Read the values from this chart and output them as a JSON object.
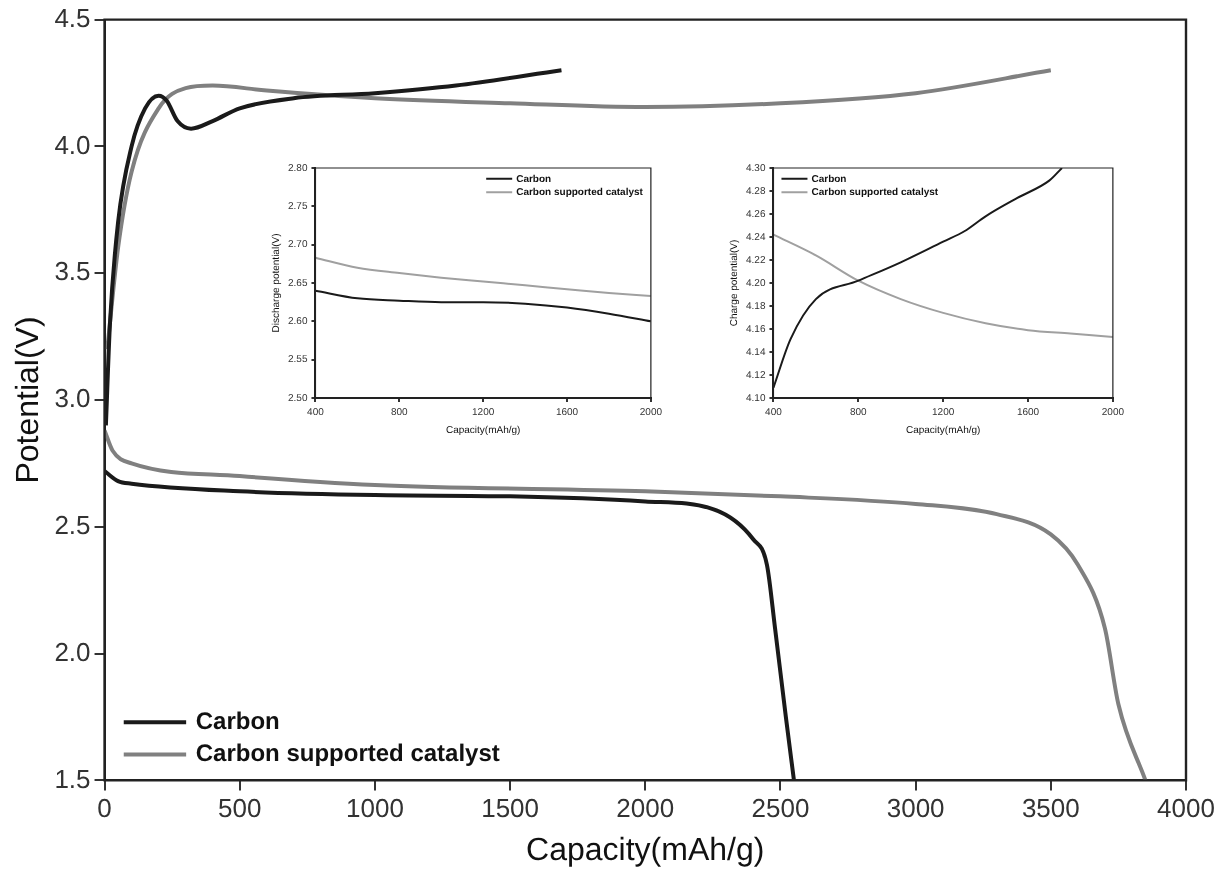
{
  "chart_data": [
    {
      "type": "line",
      "xlabel": "Capacity(mAh/g)",
      "ylabel": "Potential(V)",
      "xlim": [
        0,
        4000
      ],
      "xticks": [
        0,
        500,
        1000,
        1500,
        2000,
        2500,
        3000,
        3500,
        4000
      ],
      "ylim": [
        1.5,
        4.5
      ],
      "yticks": [
        {
          "value": 1.5,
          "label": "1.5"
        },
        {
          "value": 2,
          "label": "2.0"
        },
        {
          "value": 2.5,
          "label": "2.5"
        },
        {
          "value": 3,
          "label": "3.0"
        },
        {
          "value": 3.5,
          "label": "3.5"
        },
        {
          "value": 4,
          "label": "4.0"
        },
        {
          "value": 4.5,
          "label": "4.5"
        }
      ],
      "grid": false,
      "legend": "bottom left",
      "marker": "none",
      "line_style": "solid",
      "series": [
        {
          "name": "Carbon",
          "color": "#1a1a1a",
          "x": [
            0,
            50,
            100,
            500,
            1000,
            1500,
            2000,
            2250,
            2400,
            2450,
            2480,
            2520,
            2550
          ],
          "values": [
            2.72,
            2.68,
            2.67,
            2.64,
            2.625,
            2.62,
            2.6,
            2.57,
            2.45,
            2.35,
            2.1,
            1.75,
            1.5
          ]
        },
        {
          "name": "Carbon supported catalyst",
          "color": "#808080",
          "x": [
            0,
            30,
            100,
            500,
            1000,
            2000,
            2500,
            3000,
            3300,
            3500,
            3600,
            3700,
            3750,
            3850
          ],
          "values": [
            2.88,
            2.8,
            2.75,
            2.7,
            2.665,
            2.64,
            2.62,
            2.59,
            2.55,
            2.47,
            2.35,
            2.1,
            1.8,
            1.5
          ]
        },
        {
          "color": "#1a1a1a",
          "x": [
            5,
            20,
            50,
            100,
            150,
            200,
            230,
            270,
            320,
            400,
            500,
            700,
            1000,
            1300,
            1690
          ],
          "values": [
            2.9,
            3.3,
            3.7,
            4.0,
            4.15,
            4.2,
            4.18,
            4.1,
            4.07,
            4.1,
            4.15,
            4.19,
            4.21,
            4.24,
            4.3
          ]
        },
        {
          "color": "#808080",
          "x": [
            10,
            50,
            100,
            200,
            300,
            400,
            600,
            1000,
            1500,
            2000,
            2500,
            3000,
            3500
          ],
          "values": [
            3.2,
            3.6,
            3.9,
            4.15,
            4.23,
            4.24,
            4.22,
            4.19,
            4.17,
            4.155,
            4.17,
            4.21,
            4.3
          ]
        }
      ]
    },
    {
      "type": "line",
      "xlabel": "Capacity(mAh/g)",
      "ylabel": "Discharge potential(V)",
      "xlim": [
        400,
        2000
      ],
      "xticks": [
        400,
        800,
        1200,
        1600,
        2000
      ],
      "ylim": [
        2.5,
        2.8
      ],
      "yticks": [
        {
          "value": 2.5,
          "label": "2.50"
        },
        {
          "value": 2.55,
          "label": "2.55"
        },
        {
          "value": 2.6,
          "label": "2.60"
        },
        {
          "value": 2.65,
          "label": "2.65"
        },
        {
          "value": 2.7,
          "label": "2.70"
        },
        {
          "value": 2.75,
          "label": "2.75"
        },
        {
          "value": 2.8,
          "label": "2.80"
        }
      ],
      "grid": false,
      "legend": "top right",
      "marker": "none",
      "line_style": "solid",
      "series": [
        {
          "name": "Carbon",
          "color": "#1a1a1a",
          "x": [
            400,
            600,
            800,
            1000,
            1200,
            1400,
            1600,
            1800,
            2000
          ],
          "values": [
            2.64,
            2.63,
            2.627,
            2.625,
            2.625,
            2.623,
            2.618,
            2.61,
            2.6
          ]
        },
        {
          "name": "Carbon supported catalyst",
          "color": "#a0a0a0",
          "x": [
            400,
            600,
            800,
            1000,
            1200,
            1400,
            1600,
            1800,
            2000
          ],
          "values": [
            2.683,
            2.67,
            2.663,
            2.657,
            2.652,
            2.647,
            2.642,
            2.637,
            2.633
          ]
        }
      ]
    },
    {
      "type": "line",
      "xlabel": "Capacity(mAh/g)",
      "ylabel": "Charge potential(V)",
      "xlim": [
        400,
        2000
      ],
      "xticks": [
        400,
        800,
        1200,
        1600,
        2000
      ],
      "ylim": [
        4.1,
        4.3
      ],
      "yticks": [
        {
          "value": 4.1,
          "label": "4.10"
        },
        {
          "value": 4.12,
          "label": "4.12"
        },
        {
          "value": 4.14,
          "label": "4.14"
        },
        {
          "value": 4.16,
          "label": "4.16"
        },
        {
          "value": 4.18,
          "label": "4.18"
        },
        {
          "value": 4.2,
          "label": "4.20"
        },
        {
          "value": 4.22,
          "label": "4.22"
        },
        {
          "value": 4.24,
          "label": "4.24"
        },
        {
          "value": 4.26,
          "label": "4.26"
        },
        {
          "value": 4.28,
          "label": "4.28"
        },
        {
          "value": 4.3,
          "label": "4.30"
        }
      ],
      "grid": false,
      "legend": "top left",
      "marker": "none",
      "line_style": "solid",
      "series": [
        {
          "name": "Carbon",
          "color": "#1a1a1a",
          "x": [
            400,
            480,
            600,
            800,
            1000,
            1200,
            1300,
            1400,
            1550,
            1700,
            1760
          ],
          "values": [
            4.109,
            4.151,
            4.186,
            4.202,
            4.218,
            4.236,
            4.245,
            4.258,
            4.274,
            4.289,
            4.3
          ]
        },
        {
          "name": "Carbon supported catalyst",
          "color": "#a0a0a0",
          "x": [
            400,
            600,
            800,
            1000,
            1200,
            1400,
            1600,
            1800,
            2000
          ],
          "values": [
            4.242,
            4.224,
            4.202,
            4.186,
            4.174,
            4.165,
            4.159,
            4.156,
            4.153
          ]
        }
      ]
    }
  ]
}
